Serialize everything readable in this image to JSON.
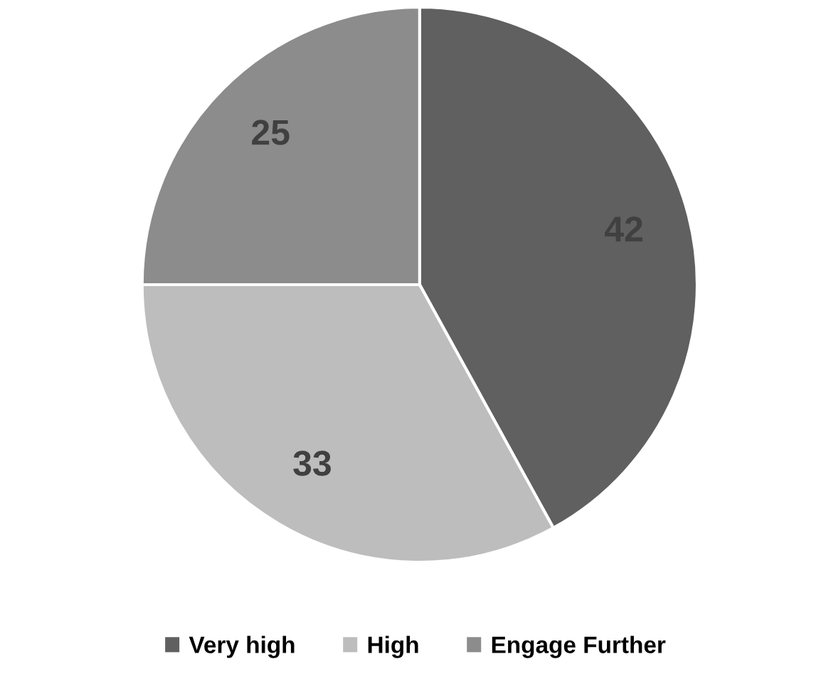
{
  "chart_data": {
    "type": "pie",
    "categories": [
      "Very high",
      "High",
      "Engage Further"
    ],
    "values": [
      42,
      33,
      25
    ],
    "colors": [
      "#606060",
      "#bdbdbd",
      "#8c8c8c"
    ],
    "data_labels": true,
    "legend": "bottom"
  }
}
